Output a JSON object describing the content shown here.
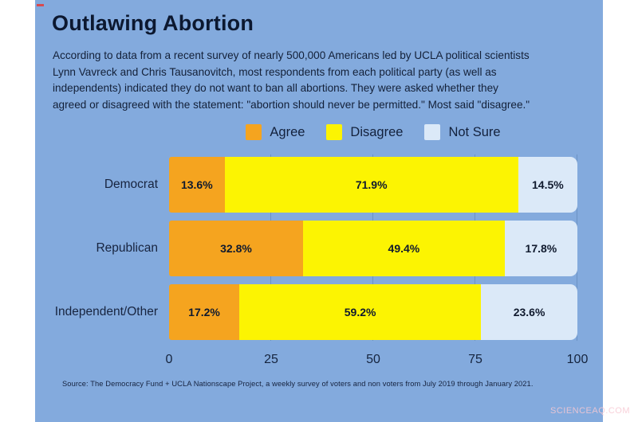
{
  "page": {
    "watermark": "SCIENCEAQ.COM",
    "panel_color": "#83aadd",
    "background": "#ffffff"
  },
  "header": {
    "title": "Outlawing Abortion",
    "description_lines": [
      "According to data from a recent survey of nearly 500,000 Americans led by UCLA political scientists",
      "Lynn Vavreck and Chris Tausanovitch, most respondents from each political party (as well as",
      "independents) indicated they do not want to ban all abortions. They were asked whether they",
      "agreed or disagreed with the statement: \"abortion should never be permitted.\" Most said \"disagree.\""
    ]
  },
  "legend": {
    "items": [
      {
        "label": "Agree",
        "color": "#f5a41f"
      },
      {
        "label": "Disagree",
        "color": "#fcf402"
      },
      {
        "label": "Not Sure",
        "color": "#dbe9f8"
      }
    ]
  },
  "chart_data": {
    "type": "bar",
    "orientation": "horizontal",
    "stacked": true,
    "title": "Outlawing Abortion",
    "categories": [
      "Democrat",
      "Republican",
      "Independent/Other"
    ],
    "series": [
      {
        "name": "Agree",
        "color": "#f5a41f",
        "values": [
          13.6,
          32.8,
          17.2
        ]
      },
      {
        "name": "Disagree",
        "color": "#fcf402",
        "values": [
          71.9,
          49.4,
          59.2
        ]
      },
      {
        "name": "Not Sure",
        "color": "#dbe9f8",
        "values": [
          14.5,
          17.8,
          23.6
        ]
      }
    ],
    "value_labels": [
      [
        "13.6%",
        "71.9%",
        "14.5%"
      ],
      [
        "32.8%",
        "49.4%",
        "17.8%"
      ],
      [
        "17.2%",
        "59.2%",
        "23.6%"
      ]
    ],
    "xlim": [
      0,
      100
    ],
    "x_ticks": [
      0,
      25,
      50,
      75,
      100
    ],
    "grid": "vertical-ticks-in-gaps",
    "legend_position": "top"
  },
  "footer": {
    "source": "Source: The Democracy Fund + UCLA Nationscape Project, a weekly survey of voters and non voters from July 2019 through January 2021."
  }
}
